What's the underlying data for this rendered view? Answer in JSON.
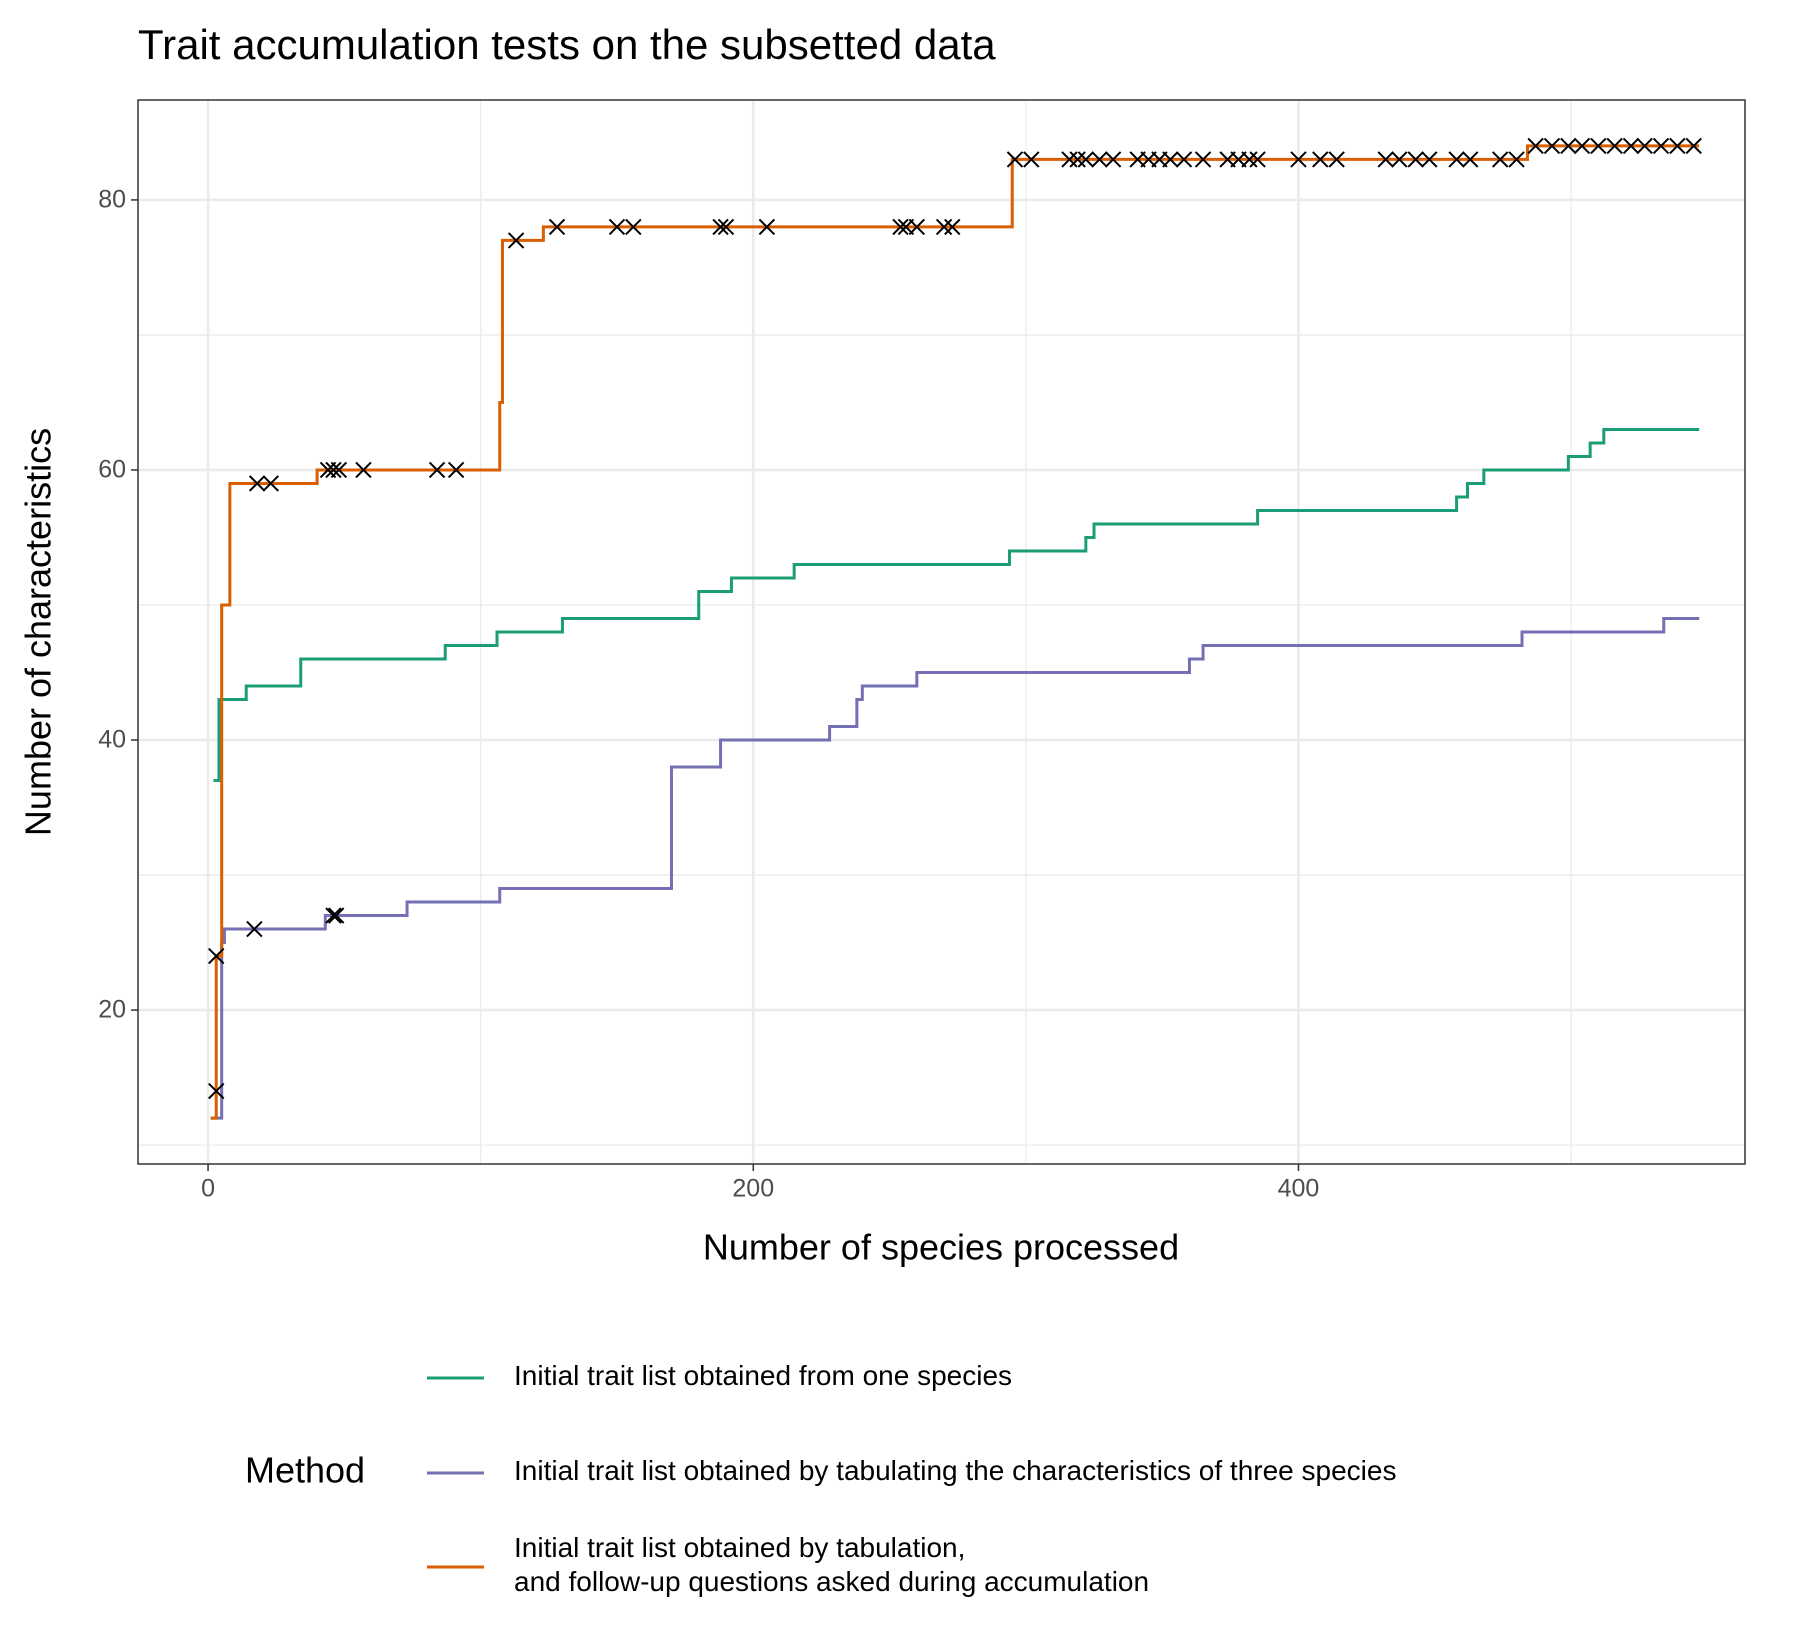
{
  "chart_data": {
    "type": "line",
    "line_shape": "step",
    "title": "Trait accumulation tests on the subsetted data",
    "x_label": "Number of species processed",
    "y_label": "Number of characteristics",
    "legend_title": "Method",
    "xlim": [
      -25.7,
      563.8
    ],
    "ylim": [
      8.6,
      87.4
    ],
    "xticks": [
      0,
      200,
      400
    ],
    "yticks": [
      20,
      40,
      60,
      80
    ],
    "x_minor_ticks": [
      100,
      300,
      500
    ],
    "y_minor_ticks": [
      10,
      30,
      50,
      70
    ],
    "grid": true,
    "series": [
      {
        "name": "Initial trait list obtained from one species",
        "color": "#1b9e77",
        "x": [
          2,
          4,
          14,
          34,
          87,
          106,
          130,
          180,
          192,
          215,
          294,
          322,
          325,
          385,
          458,
          462,
          468,
          499,
          507,
          512,
          547
        ],
        "y": [
          37,
          43,
          44,
          46,
          47,
          48,
          49,
          51,
          52,
          53,
          54,
          55,
          56,
          57,
          58,
          59,
          60,
          61,
          62,
          63,
          63
        ]
      },
      {
        "name": "Initial trait list obtained by tabulating the characteristics of three species",
        "color": "#7570b3",
        "x": [
          1,
          3,
          5,
          6,
          43,
          73,
          107,
          170,
          188,
          228,
          238,
          240,
          260,
          360,
          365,
          482,
          534,
          547
        ],
        "y": [
          12,
          12,
          25,
          26,
          27,
          28,
          29,
          38,
          40,
          41,
          43,
          44,
          45,
          46,
          47,
          48,
          49,
          49
        ]
      },
      {
        "name": "Initial trait list obtained by tabulation,\nand follow-up questions asked during accumulation",
        "color": "#d95f02",
        "x": [
          1,
          3,
          5,
          8,
          40,
          107,
          108,
          123,
          295,
          484,
          547
        ],
        "y": [
          12,
          24,
          50,
          59,
          60,
          65,
          77,
          78,
          83,
          84,
          84
        ]
      }
    ],
    "points": {
      "type": "scatter",
      "color": "#000000",
      "x": [
        3,
        3,
        17,
        46,
        47,
        18,
        23,
        44,
        46,
        48,
        57,
        84,
        91,
        113,
        128,
        150,
        156,
        188,
        190,
        205,
        254,
        256,
        260,
        270,
        273,
        296,
        302,
        316,
        319,
        322,
        327,
        332,
        341,
        345,
        349,
        353,
        358,
        365,
        374,
        378,
        382,
        385,
        400,
        408,
        414,
        432,
        437,
        443,
        448,
        458,
        463,
        474,
        480,
        487,
        493,
        499,
        504,
        510,
        516,
        522,
        527,
        533,
        539,
        545
      ],
      "y": [
        24,
        14,
        26,
        27,
        27,
        59,
        59,
        60,
        60,
        60,
        60,
        60,
        60,
        77,
        78,
        78,
        78,
        78,
        78,
        78,
        78,
        78,
        78,
        78,
        78,
        83,
        83,
        83,
        83,
        83,
        83,
        83,
        83,
        83,
        83,
        83,
        83,
        83,
        83,
        83,
        83,
        83,
        83,
        83,
        83,
        83,
        83,
        83,
        83,
        83,
        83,
        83,
        83,
        84,
        84,
        84,
        84,
        84,
        84,
        84,
        84,
        84,
        84,
        84
      ]
    }
  }
}
